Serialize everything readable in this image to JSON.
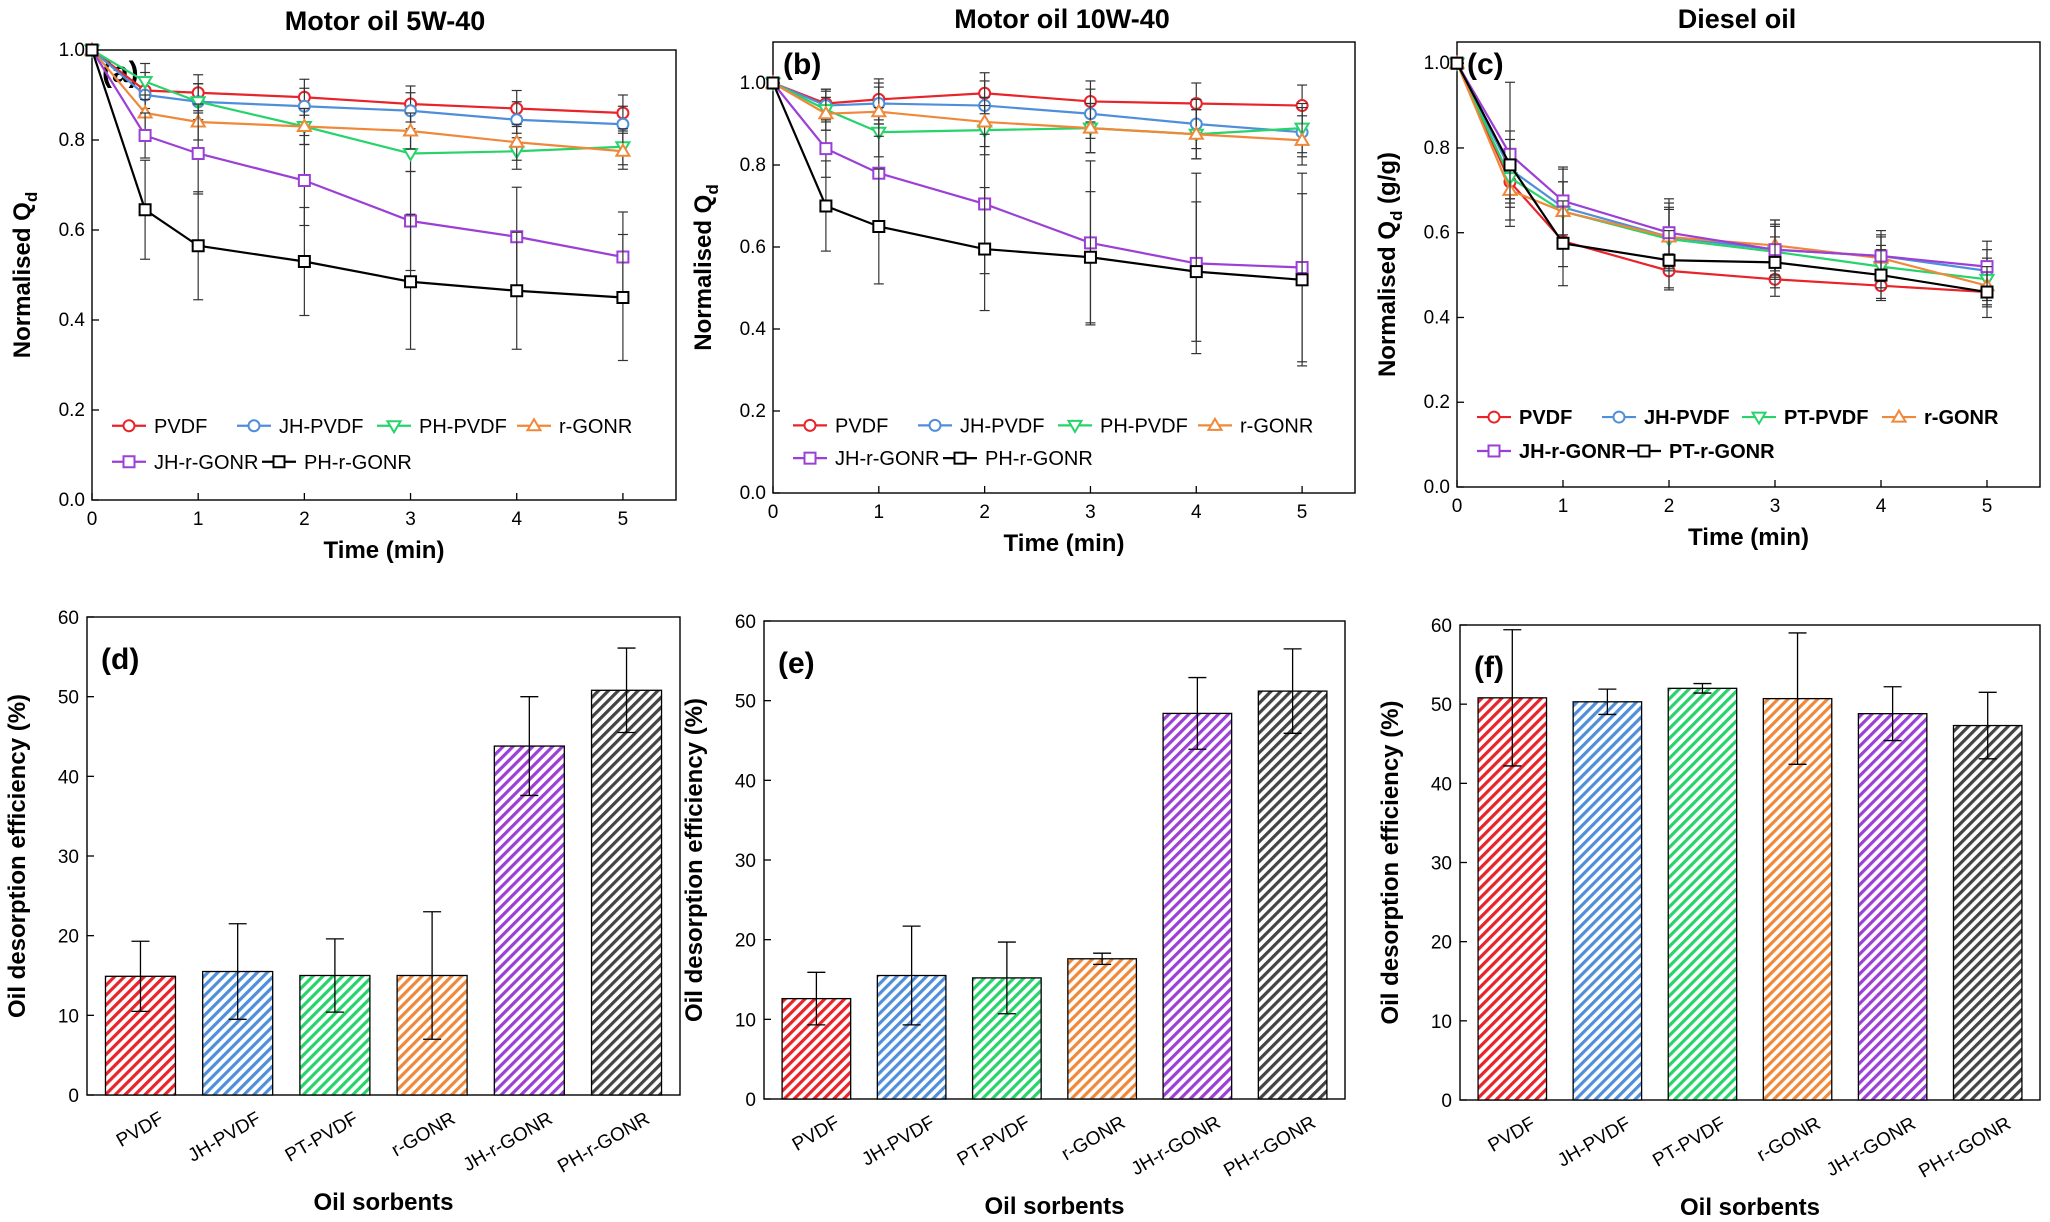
{
  "chart_data": [
    {
      "type": "line",
      "panel": "(a)",
      "title": "Motor oil 5W-40",
      "xlabel": "Time (min)",
      "ylabel_main": "Normalised Q",
      "ylabel_sub": "d",
      "ylabel_suffix": "",
      "xlim": [
        0,
        5.5
      ],
      "ylim": [
        0,
        1.0
      ],
      "xticks": [
        0,
        1,
        2,
        3,
        4,
        5
      ],
      "yticks": [
        "0.0",
        "0.2",
        "0.4",
        "0.6",
        "0.8",
        "1.0"
      ],
      "legend_style": "normal",
      "x": [
        0,
        0.5,
        1,
        2,
        3,
        4,
        5
      ],
      "series": [
        {
          "name": "PVDF",
          "color": "#e8232a",
          "marker": "circle",
          "values": [
            1.0,
            0.91,
            0.905,
            0.895,
            0.88,
            0.87,
            0.86
          ],
          "err": [
            0,
            0.04,
            0.04,
            0.04,
            0.04,
            0.04,
            0.04
          ]
        },
        {
          "name": "JH-PVDF",
          "color": "#4f8fd9",
          "marker": "circle",
          "values": [
            1.0,
            0.9,
            0.885,
            0.875,
            0.865,
            0.845,
            0.835
          ],
          "err": [
            0,
            0.04,
            0.04,
            0.04,
            0.04,
            0.04,
            0.04
          ]
        },
        {
          "name": "PH-PVDF",
          "color": "#27d36b",
          "marker": "triangle-down",
          "values": [
            1.0,
            0.93,
            0.885,
            0.83,
            0.77,
            0.775,
            0.785
          ],
          "err": [
            0,
            0.04,
            0.04,
            0.04,
            0.04,
            0.04,
            0.04
          ]
        },
        {
          "name": "r-GONR",
          "color": "#f0883a",
          "marker": "triangle-up",
          "values": [
            1.0,
            0.86,
            0.84,
            0.83,
            0.82,
            0.795,
            0.775
          ],
          "err": [
            0,
            0.04,
            0.04,
            0.04,
            0.04,
            0.04,
            0.04
          ]
        },
        {
          "name": "JH-r-GONR",
          "color": "#9c3fd6",
          "marker": "square",
          "values": [
            1.0,
            0.81,
            0.77,
            0.71,
            0.62,
            0.585,
            0.54
          ],
          "err": [
            0,
            0.05,
            0.09,
            0.1,
            0.11,
            0.11,
            0.1
          ]
        },
        {
          "name": "PH-r-GONR",
          "color": "#000000",
          "marker": "square",
          "values": [
            1.0,
            0.645,
            0.565,
            0.53,
            0.485,
            0.465,
            0.45
          ],
          "err": [
            0,
            0.11,
            0.12,
            0.12,
            0.15,
            0.13,
            0.14
          ]
        }
      ]
    },
    {
      "type": "line",
      "panel": "(b)",
      "title": "Motor oil 10W-40",
      "xlabel": "Time (min)",
      "ylabel_main": "Normalised Q",
      "ylabel_sub": "d",
      "ylabel_suffix": "",
      "xlim": [
        0,
        5.5
      ],
      "ylim": [
        0,
        1.1
      ],
      "xticks": [
        0,
        1,
        2,
        3,
        4,
        5
      ],
      "yticks": [
        "0.0",
        "0.2",
        "0.4",
        "0.6",
        "0.8",
        "1.0"
      ],
      "legend_style": "normal",
      "x": [
        0,
        0.5,
        1,
        2,
        3,
        4,
        5
      ],
      "series": [
        {
          "name": "PVDF",
          "color": "#e8232a",
          "marker": "circle",
          "values": [
            1.0,
            0.95,
            0.96,
            0.975,
            0.955,
            0.95,
            0.945
          ],
          "err": [
            0,
            0.03,
            0.05,
            0.05,
            0.05,
            0.05,
            0.05
          ]
        },
        {
          "name": "JH-PVDF",
          "color": "#4f8fd9",
          "marker": "circle",
          "values": [
            1.0,
            0.945,
            0.95,
            0.945,
            0.925,
            0.9,
            0.88
          ],
          "err": [
            0,
            0.04,
            0.05,
            0.06,
            0.06,
            0.06,
            0.06
          ]
        },
        {
          "name": "PH-PVDF",
          "color": "#27d36b",
          "marker": "triangle-down",
          "values": [
            1.0,
            0.935,
            0.88,
            0.885,
            0.89,
            0.875,
            0.89
          ],
          "err": [
            0,
            0.05,
            0.06,
            0.06,
            0.06,
            0.06,
            0.06
          ]
        },
        {
          "name": "r-GONR",
          "color": "#f0883a",
          "marker": "triangle-up",
          "values": [
            1.0,
            0.925,
            0.93,
            0.905,
            0.89,
            0.875,
            0.86
          ],
          "err": [
            0,
            0.04,
            0.06,
            0.06,
            0.06,
            0.06,
            0.06
          ]
        },
        {
          "name": "JH-r-GONR",
          "color": "#9c3fd6",
          "marker": "square",
          "values": [
            1.0,
            0.84,
            0.78,
            0.705,
            0.61,
            0.56,
            0.55
          ],
          "err": [
            0,
            0.07,
            0.12,
            0.17,
            0.2,
            0.22,
            0.23
          ]
        },
        {
          "name": "PH-r-GONR",
          "color": "#000000",
          "marker": "square",
          "values": [
            1.0,
            0.7,
            0.65,
            0.595,
            0.575,
            0.54,
            0.52
          ],
          "err": [
            0,
            0.11,
            0.14,
            0.15,
            0.16,
            0.17,
            0.21
          ]
        }
      ]
    },
    {
      "type": "line",
      "panel": "(c)",
      "title": "Diesel oil",
      "xlabel": "Time (min)",
      "ylabel_main": "Normalised Q",
      "ylabel_sub": "d",
      "ylabel_suffix": " (g/g)",
      "xlim": [
        0,
        5.5
      ],
      "ylim": [
        0,
        1.05
      ],
      "xticks": [
        0,
        1,
        2,
        3,
        4,
        5
      ],
      "yticks": [
        "0.0",
        "0.2",
        "0.4",
        "0.6",
        "0.8",
        "1.0"
      ],
      "legend_style": "bold",
      "x": [
        0,
        0.5,
        1,
        2,
        3,
        4,
        5
      ],
      "series": [
        {
          "name": "PVDF",
          "color": "#e8232a",
          "marker": "circle",
          "values": [
            1.0,
            0.72,
            0.58,
            0.51,
            0.49,
            0.475,
            0.46
          ],
          "err": [
            0,
            0.06,
            0.06,
            0.04,
            0.04,
            0.03,
            0.03
          ]
        },
        {
          "name": "JH-PVDF",
          "color": "#4f8fd9",
          "marker": "circle",
          "values": [
            1.0,
            0.75,
            0.66,
            0.59,
            0.56,
            0.545,
            0.51
          ],
          "err": [
            0,
            0.07,
            0.09,
            0.08,
            0.06,
            0.05,
            0.05
          ]
        },
        {
          "name": "PT-PVDF",
          "color": "#27d36b",
          "marker": "triangle-down",
          "values": [
            1.0,
            0.73,
            0.65,
            0.585,
            0.555,
            0.52,
            0.49
          ],
          "err": [
            0,
            0.06,
            0.07,
            0.07,
            0.06,
            0.05,
            0.05
          ]
        },
        {
          "name": "r-GONR",
          "color": "#f0883a",
          "marker": "triangle-up",
          "values": [
            1.0,
            0.7,
            0.65,
            0.59,
            0.57,
            0.54,
            0.475
          ],
          "err": [
            0,
            0.07,
            0.07,
            0.07,
            0.06,
            0.05,
            0.05
          ]
        },
        {
          "name": "JH-r-GONR",
          "color": "#9c3fd6",
          "marker": "square",
          "values": [
            1.0,
            0.785,
            0.675,
            0.6,
            0.56,
            0.545,
            0.52
          ],
          "err": [
            0,
            0.17,
            0.08,
            0.08,
            0.07,
            0.06,
            0.06
          ]
        },
        {
          "name": "PT-r-GONR",
          "color": "#000000",
          "marker": "square",
          "values": [
            1.0,
            0.76,
            0.575,
            0.535,
            0.53,
            0.5,
            0.46
          ],
          "err": [
            0,
            0.08,
            0.1,
            0.07,
            0.06,
            0.06,
            0.06
          ]
        }
      ]
    },
    {
      "type": "bar",
      "panel": "(d)",
      "xlabel": "Oil sorbents",
      "ylabel": "Oil desorption efficiency (%)",
      "ylim": [
        0,
        60
      ],
      "yticks": [
        "0",
        "10",
        "20",
        "30",
        "40",
        "50",
        "60"
      ],
      "categories": [
        "PVDF",
        "JH-PVDF",
        "PT-PVDF",
        "r-GONR",
        "JH-r-GONR",
        "PH-r-GONR"
      ],
      "values": [
        14.9,
        15.5,
        15.0,
        15.0,
        43.8,
        50.8
      ],
      "err": [
        4.4,
        6.0,
        4.6,
        8.0,
        6.2,
        5.3
      ],
      "colors": [
        "#e8232a",
        "#4f8fd9",
        "#27d36b",
        "#f0883a",
        "#9c3fd6",
        "#444444"
      ]
    },
    {
      "type": "bar",
      "panel": "(e)",
      "xlabel": "Oil sorbents",
      "ylabel": "Oil desorption efficiency (%)",
      "ylim": [
        0,
        60
      ],
      "yticks": [
        "0",
        "10",
        "20",
        "30",
        "40",
        "50",
        "60"
      ],
      "categories": [
        "PVDF",
        "JH-PVDF",
        "PT-PVDF",
        "r-GONR",
        "JH-r-GONR",
        "PH-r-GONR"
      ],
      "values": [
        12.6,
        15.5,
        15.2,
        17.6,
        48.4,
        51.2
      ],
      "err": [
        3.3,
        6.2,
        4.5,
        0.7,
        4.5,
        5.3
      ],
      "colors": [
        "#e8232a",
        "#4f8fd9",
        "#27d36b",
        "#f0883a",
        "#9c3fd6",
        "#444444"
      ]
    },
    {
      "type": "bar",
      "panel": "(f)",
      "xlabel": "Oil sorbents",
      "ylabel": "Oil desorption efficiency (%)",
      "ylim": [
        0,
        60
      ],
      "yticks": [
        "0",
        "10",
        "20",
        "30",
        "40",
        "50",
        "60"
      ],
      "categories": [
        "PVDF",
        "JH-PVDF",
        "PT-PVDF",
        "r-GONR",
        "JH-r-GONR",
        "PH-r-GONR"
      ],
      "values": [
        50.8,
        50.3,
        52.0,
        50.7,
        48.8,
        47.3
      ],
      "err": [
        8.6,
        1.6,
        0.6,
        8.3,
        3.4,
        4.2
      ],
      "colors": [
        "#e8232a",
        "#4f8fd9",
        "#27d36b",
        "#f0883a",
        "#9c3fd6",
        "#444444"
      ]
    }
  ]
}
